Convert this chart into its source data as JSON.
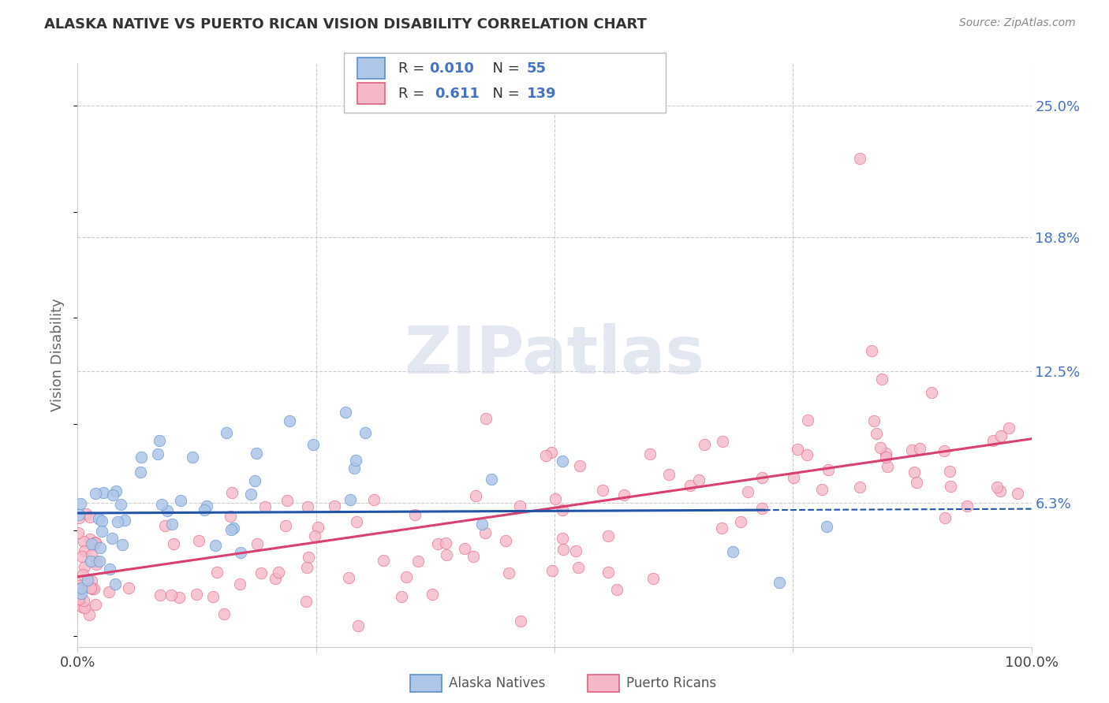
{
  "title": "ALASKA NATIVE VS PUERTO RICAN VISION DISABILITY CORRELATION CHART",
  "source": "Source: ZipAtlas.com",
  "ylabel": "Vision Disability",
  "xlim": [
    0.0,
    1.0
  ],
  "ylim": [
    -0.005,
    0.27
  ],
  "ytick_labels_right": [
    "25.0%",
    "18.8%",
    "12.5%",
    "6.3%"
  ],
  "ytick_vals_right": [
    0.25,
    0.188,
    0.125,
    0.063
  ],
  "watermark": "ZIPatlas",
  "alaska_R": 0.01,
  "alaska_N": 55,
  "puerto_R": 0.611,
  "puerto_N": 139,
  "alaska_color": "#aec6e8",
  "alaska_edge_color": "#5b8fc9",
  "alaska_line_color": "#2255aa",
  "puerto_color": "#f5b8c8",
  "puerto_edge_color": "#e06080",
  "puerto_line_color": "#d94070",
  "legend_box_color": "#dddddd",
  "grid_color": "#cccccc",
  "title_color": "#333333",
  "source_color": "#888888",
  "axis_label_color": "#666666",
  "tick_label_color": "#444444",
  "right_tick_color": "#4472c4",
  "watermark_color": "#d0d8e8",
  "alaska_line_solid_end": 0.72,
  "puerto_line_start": 0.0,
  "puerto_line_end": 1.0,
  "alaska_line_y_at_0": 0.058,
  "alaska_line_y_at_1": 0.06,
  "puerto_line_y_at_0": 0.028,
  "puerto_line_y_at_1": 0.093
}
